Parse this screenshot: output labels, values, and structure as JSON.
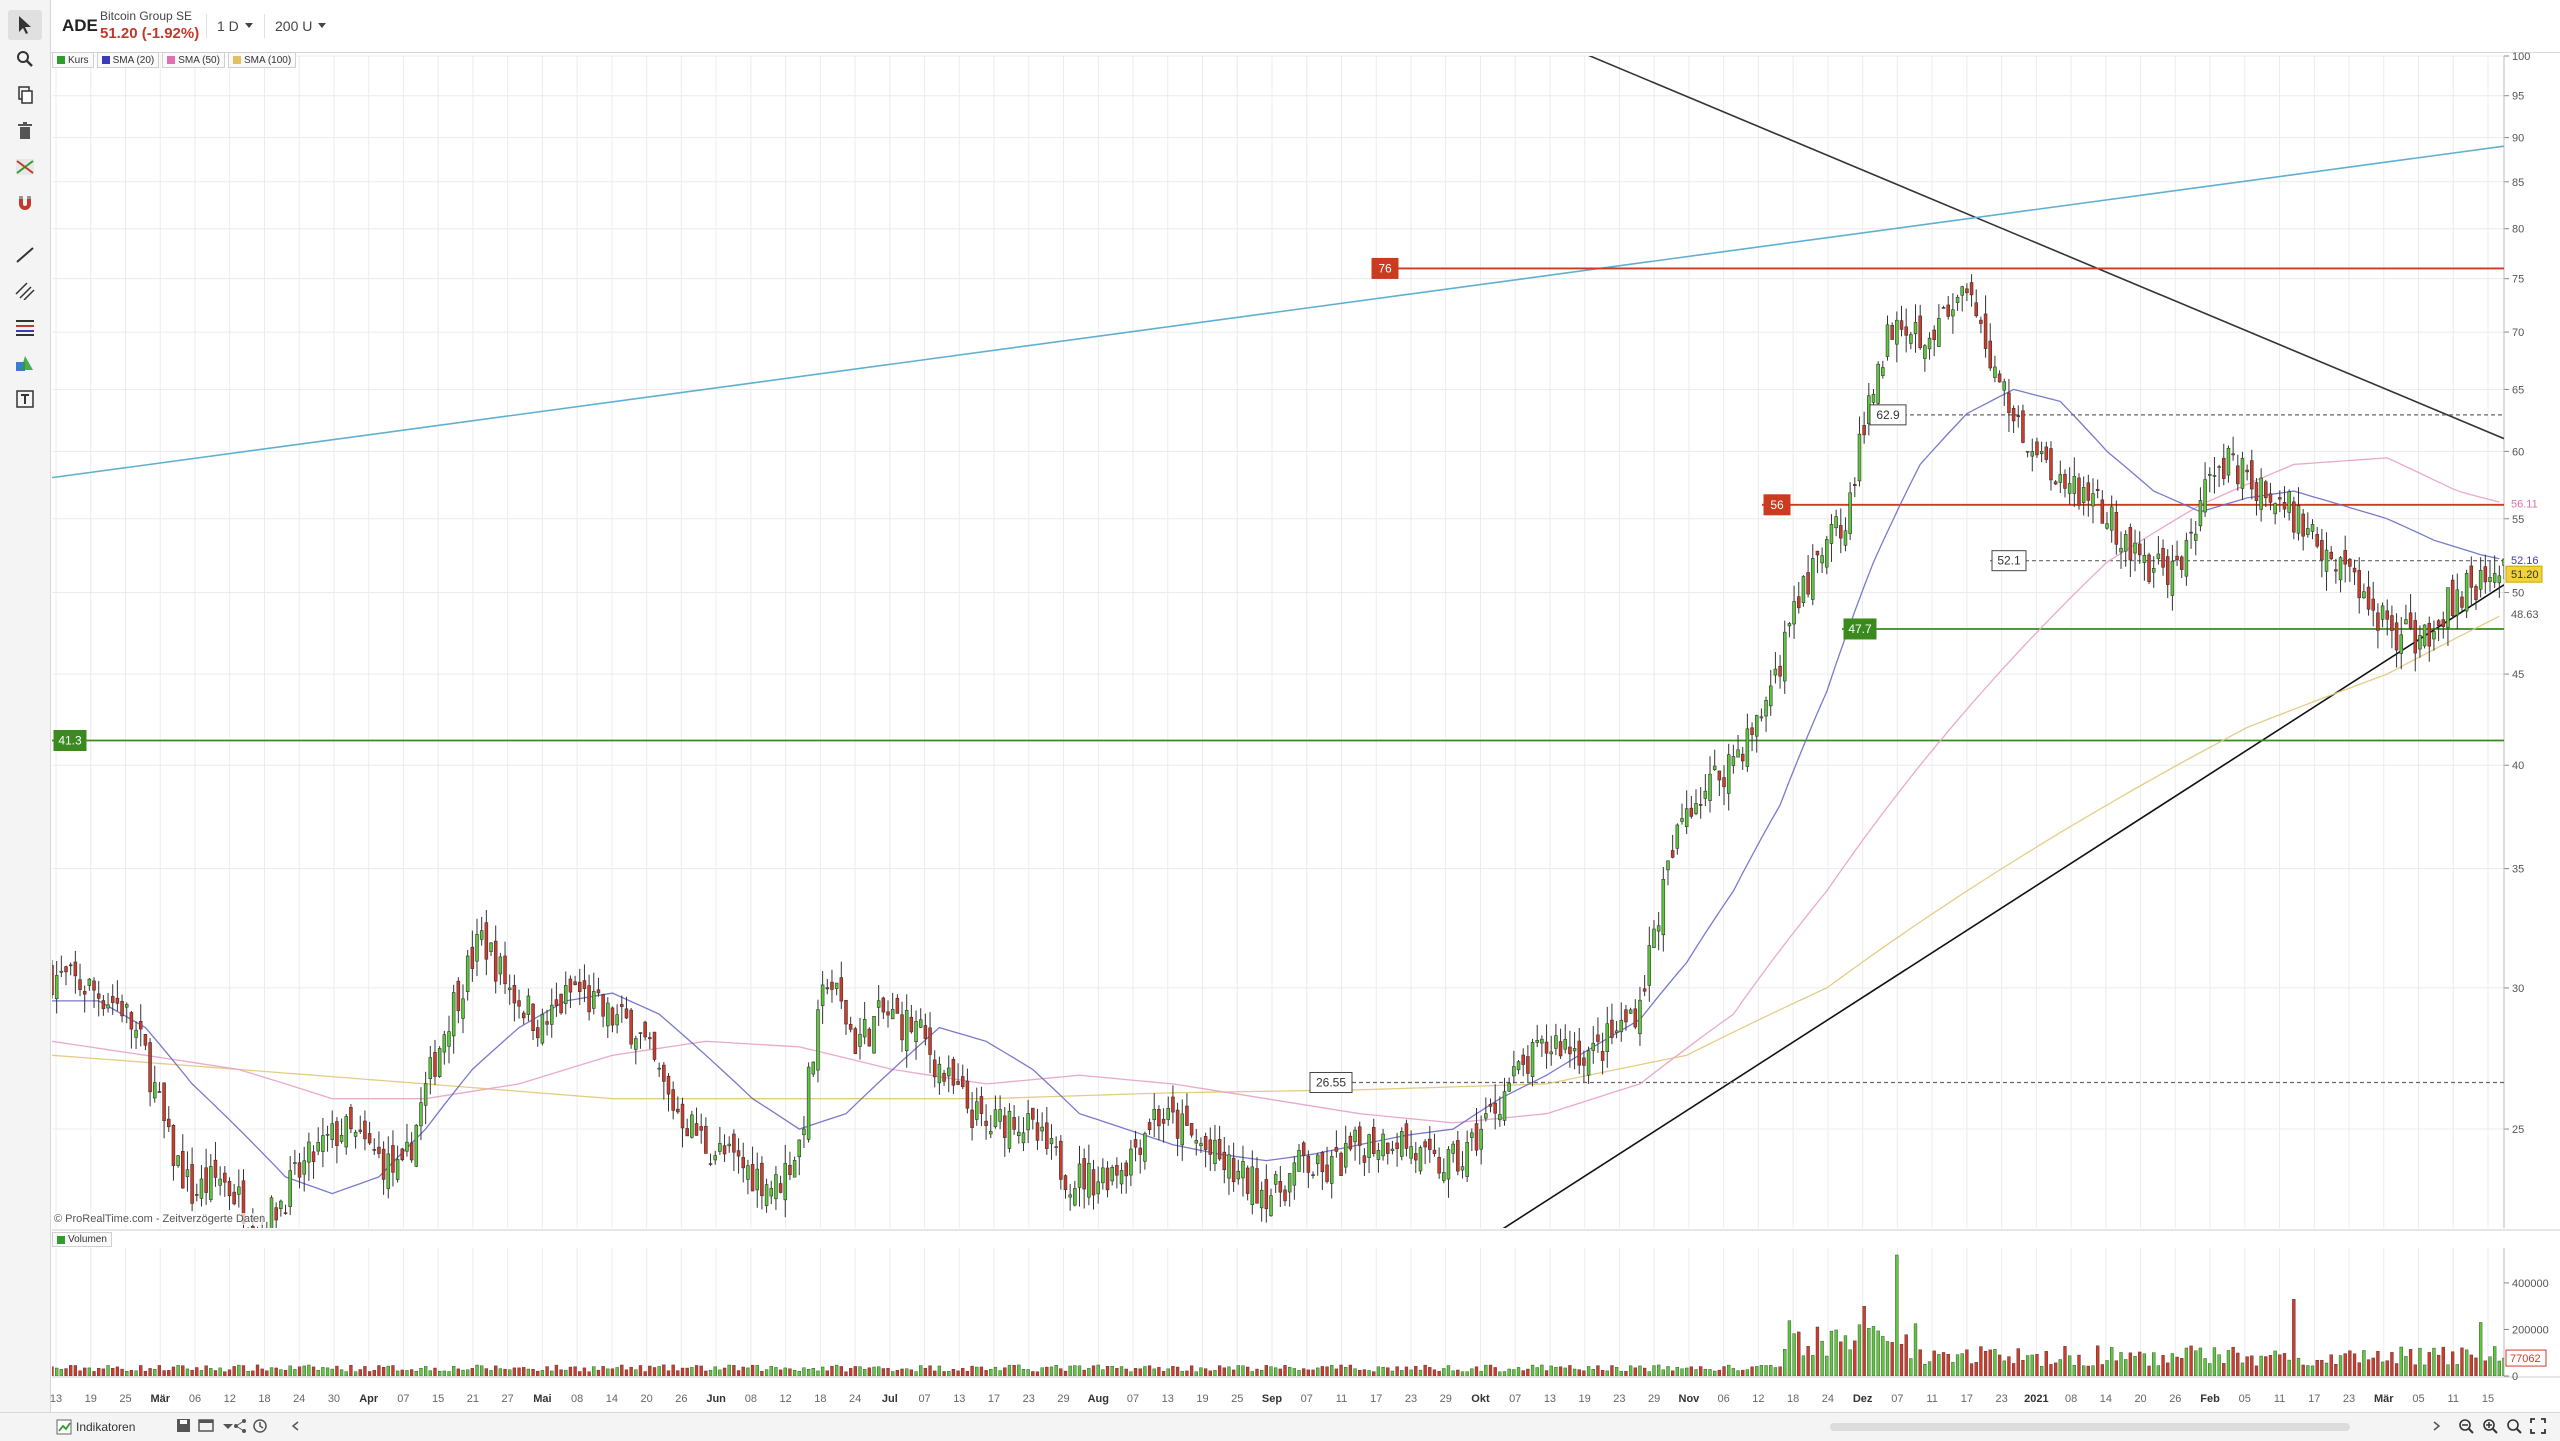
{
  "header": {
    "symbol": "ADE",
    "company": "Bitcoin Group SE",
    "price": "51.20 (-1.92%)",
    "interval": "1 D",
    "units": "200 U"
  },
  "legend": [
    {
      "label": "Kurs",
      "color": "#2e9d2e"
    },
    {
      "label": "SMA (20)",
      "color": "#3b3bb8"
    },
    {
      "label": "SMA (50)",
      "color": "#e070b0"
    },
    {
      "label": "SMA (100)",
      "color": "#e0c060"
    }
  ],
  "copyright": "© ProRealTime.com - Zeitverzögerte Daten",
  "volume_label": "Volumen",
  "indicators_label": "Indikatoren",
  "tools": [
    "cursor-tool",
    "zoom-tool",
    "copy-tool",
    "delete-tool",
    "trend-tool",
    "magnet-tool",
    "line-tool",
    "channel-tool",
    "fib-tool",
    "shape-tool",
    "text-tool"
  ],
  "chart_data": {
    "type": "candlestick",
    "y_scale": "log",
    "ylim": [
      22,
      100
    ],
    "y_ticks": [
      25,
      30,
      35,
      40,
      45,
      50,
      55,
      60,
      65,
      70,
      75,
      80,
      85,
      90,
      95,
      100
    ],
    "x_ticks": [
      "13",
      "19",
      "25",
      "Mär",
      "06",
      "12",
      "18",
      "24",
      "30",
      "Apr",
      "07",
      "15",
      "21",
      "27",
      "Mai",
      "08",
      "14",
      "20",
      "26",
      "Jun",
      "08",
      "12",
      "18",
      "24",
      "Jul",
      "07",
      "13",
      "17",
      "23",
      "29",
      "Aug",
      "07",
      "13",
      "19",
      "25",
      "Sep",
      "07",
      "11",
      "17",
      "23",
      "29",
      "Okt",
      "07",
      "13",
      "19",
      "23",
      "29",
      "Nov",
      "06",
      "12",
      "18",
      "24",
      "Dez",
      "07",
      "11",
      "17",
      "23",
      "2021",
      "08",
      "14",
      "20",
      "26",
      "Feb",
      "05",
      "11",
      "17",
      "23",
      "Mär",
      "05",
      "11",
      "15"
    ],
    "levels": [
      {
        "label": "76",
        "value": 76,
        "color": "#cc3a1f"
      },
      {
        "label": "56",
        "value": 56,
        "color": "#cc3a1f"
      },
      {
        "label": "47.7",
        "value": 47.7,
        "color": "#3a8a1f"
      },
      {
        "label": "41.3",
        "value": 41.3,
        "color": "#3a8a1f"
      },
      {
        "label": "62.9",
        "value": 62.9,
        "color": "#666666"
      },
      {
        "label": "52.1",
        "value": 52.1,
        "color": "#666666"
      },
      {
        "label": "26.55",
        "value": 26.55,
        "color": "#666666"
      }
    ],
    "axis_badges": [
      {
        "label": "56.11",
        "value": 56.11,
        "color": "#e070b0",
        "bg": "#ffffff"
      },
      {
        "label": "52.16",
        "value": 52.16,
        "color": "#3b3bb8",
        "bg": "#ffffff"
      },
      {
        "label": "51.20",
        "value": 51.2,
        "color": "#333333",
        "bg": "#f2d23a"
      },
      {
        "label": "48.63",
        "value": 48.63,
        "color": "#555555",
        "bg": "#ffffff"
      }
    ],
    "close_path": [
      [
        0,
        30.5
      ],
      [
        8,
        30
      ],
      [
        15,
        29.3
      ],
      [
        20,
        27.5
      ],
      [
        25,
        24.5
      ],
      [
        30,
        23
      ],
      [
        36,
        23.5
      ],
      [
        45,
        22
      ],
      [
        55,
        24
      ],
      [
        62,
        25
      ],
      [
        75,
        23.5
      ],
      [
        85,
        29
      ],
      [
        92,
        32
      ],
      [
        98,
        30
      ],
      [
        105,
        28.5
      ],
      [
        112,
        30
      ],
      [
        118,
        29
      ],
      [
        125,
        28.5
      ],
      [
        132,
        26
      ],
      [
        140,
        24.5
      ],
      [
        148,
        23.8
      ],
      [
        155,
        23.2
      ],
      [
        160,
        24.5
      ],
      [
        166,
        30.5
      ],
      [
        172,
        28
      ],
      [
        178,
        29
      ],
      [
        185,
        28.5
      ],
      [
        192,
        26.5
      ],
      [
        200,
        25
      ],
      [
        206,
        25.5
      ],
      [
        212,
        24.5
      ],
      [
        218,
        23.5
      ],
      [
        224,
        23.5
      ],
      [
        230,
        24
      ],
      [
        236,
        25.5
      ],
      [
        242,
        25
      ],
      [
        248,
        24.2
      ],
      [
        254,
        23.5
      ],
      [
        262,
        23
      ],
      [
        268,
        24
      ],
      [
        272,
        23.5
      ],
      [
        280,
        24.5
      ],
      [
        288,
        24.8
      ],
      [
        295,
        23.8
      ],
      [
        302,
        24
      ],
      [
        308,
        25.5
      ],
      [
        312,
        26.5
      ],
      [
        318,
        27.5
      ],
      [
        322,
        28
      ],
      [
        330,
        27.5
      ],
      [
        336,
        28.5
      ],
      [
        340,
        29.5
      ],
      [
        345,
        34
      ],
      [
        350,
        38
      ],
      [
        355,
        39
      ],
      [
        360,
        40.5
      ],
      [
        365,
        42
      ],
      [
        370,
        46
      ],
      [
        375,
        50
      ],
      [
        380,
        53
      ],
      [
        385,
        56
      ],
      [
        390,
        66
      ],
      [
        395,
        72
      ],
      [
        400,
        70
      ],
      [
        405,
        71
      ],
      [
        410,
        73
      ],
      [
        415,
        68
      ],
      [
        420,
        63
      ],
      [
        425,
        60
      ],
      [
        430,
        58
      ],
      [
        436,
        57
      ],
      [
        442,
        54
      ],
      [
        448,
        52
      ],
      [
        455,
        51
      ],
      [
        460,
        56
      ],
      [
        466,
        60
      ],
      [
        472,
        57
      ],
      [
        478,
        56
      ],
      [
        484,
        54
      ],
      [
        490,
        52
      ],
      [
        495,
        50
      ],
      [
        500,
        48
      ],
      [
        505,
        47
      ],
      [
        510,
        48
      ],
      [
        515,
        50
      ],
      [
        520,
        51
      ],
      [
        525,
        51.2
      ]
    ],
    "sma20_path": [
      [
        0,
        29.5
      ],
      [
        10,
        29.5
      ],
      [
        20,
        28.5
      ],
      [
        30,
        26.5
      ],
      [
        40,
        25
      ],
      [
        50,
        23.5
      ],
      [
        60,
        23
      ],
      [
        70,
        23.5
      ],
      [
        80,
        25
      ],
      [
        90,
        27
      ],
      [
        100,
        28.5
      ],
      [
        110,
        29.5
      ],
      [
        120,
        29.8
      ],
      [
        130,
        29
      ],
      [
        140,
        27.5
      ],
      [
        150,
        26
      ],
      [
        160,
        25
      ],
      [
        170,
        25.5
      ],
      [
        180,
        27
      ],
      [
        190,
        28.5
      ],
      [
        200,
        28
      ],
      [
        210,
        27
      ],
      [
        220,
        25.5
      ],
      [
        230,
        25
      ],
      [
        240,
        24.5
      ],
      [
        250,
        24.2
      ],
      [
        260,
        24
      ],
      [
        270,
        24.2
      ],
      [
        280,
        24.5
      ],
      [
        290,
        24.8
      ],
      [
        300,
        25
      ],
      [
        310,
        26
      ],
      [
        320,
        26.8
      ],
      [
        330,
        27.8
      ],
      [
        340,
        28.8
      ],
      [
        350,
        31
      ],
      [
        360,
        34
      ],
      [
        370,
        38
      ],
      [
        380,
        44
      ],
      [
        390,
        52
      ],
      [
        400,
        59
      ],
      [
        410,
        63
      ],
      [
        420,
        65
      ],
      [
        430,
        64
      ],
      [
        440,
        60
      ],
      [
        450,
        57
      ],
      [
        460,
        55.5
      ],
      [
        470,
        56.5
      ],
      [
        480,
        57
      ],
      [
        490,
        56
      ],
      [
        500,
        55
      ],
      [
        510,
        53.5
      ],
      [
        520,
        52.5
      ],
      [
        525,
        52.16
      ]
    ],
    "sma50_path": [
      [
        0,
        28
      ],
      [
        20,
        27.5
      ],
      [
        40,
        27
      ],
      [
        60,
        26
      ],
      [
        80,
        26
      ],
      [
        100,
        26.5
      ],
      [
        120,
        27.5
      ],
      [
        140,
        28
      ],
      [
        160,
        27.8
      ],
      [
        180,
        27
      ],
      [
        200,
        26.5
      ],
      [
        220,
        26.8
      ],
      [
        240,
        26.5
      ],
      [
        260,
        26
      ],
      [
        280,
        25.5
      ],
      [
        300,
        25.2
      ],
      [
        320,
        25.5
      ],
      [
        340,
        26.5
      ],
      [
        360,
        29
      ],
      [
        380,
        34
      ],
      [
        400,
        40
      ],
      [
        420,
        46
      ],
      [
        440,
        52
      ],
      [
        460,
        56
      ],
      [
        480,
        59
      ],
      [
        500,
        59.5
      ],
      [
        515,
        57
      ],
      [
        525,
        56.11
      ]
    ],
    "sma100_path": [
      [
        0,
        27.5
      ],
      [
        40,
        27
      ],
      [
        80,
        26.5
      ],
      [
        120,
        26
      ],
      [
        160,
        26
      ],
      [
        200,
        26
      ],
      [
        240,
        26.2
      ],
      [
        280,
        26.3
      ],
      [
        320,
        26.5
      ],
      [
        350,
        27.5
      ],
      [
        380,
        30
      ],
      [
        410,
        34
      ],
      [
        440,
        38
      ],
      [
        470,
        42
      ],
      [
        500,
        45
      ],
      [
        525,
        48.63
      ]
    ],
    "trendlines": [
      {
        "name": "descending-resistance",
        "p1": [
          310,
          105
        ],
        "p2": [
          525,
          61
        ],
        "color": "#333333"
      },
      {
        "name": "ascending-support",
        "p1": [
          305,
          21.5
        ],
        "p2": [
          525,
          50.5
        ],
        "color": "#111111"
      },
      {
        "name": "long-channel-top",
        "p1": [
          0,
          58
        ],
        "p2": [
          525,
          89
        ],
        "color": "#5fb0d0"
      }
    ],
    "volume": {
      "ticks": [
        "400000",
        "200000",
        "0"
      ],
      "last": "77062",
      "ylim": [
        0,
        550000
      ]
    }
  }
}
